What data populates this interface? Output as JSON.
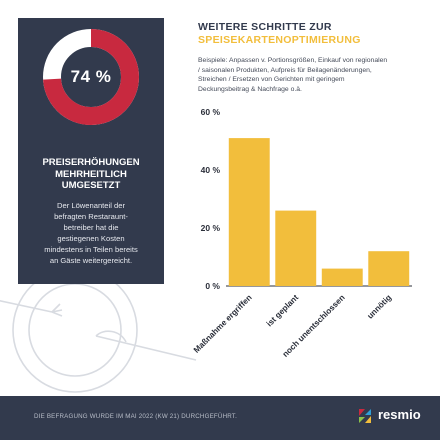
{
  "card": {
    "percent_label": "74 %",
    "percent_value": 74,
    "heading_lines": [
      "PREISERHÖHUNGEN",
      "MEHRHEITLICH",
      "UMGESETZT"
    ],
    "body_lines": [
      "Der Löwenanteil der",
      "befragten Restaraunt-",
      "betreiber hat die",
      "gestiegenen Kosten",
      "mindestens in Teilen bereits",
      "an Gäste weitergereicht."
    ],
    "colors": {
      "background": "#323a4d",
      "ring_filled": "#c8293f",
      "ring_empty": "#ffffff"
    }
  },
  "chart_data": {
    "type": "bar",
    "title_lines": [
      "WEITERE SCHRITTE ZUR",
      "SPEISEKARTENOPTIMIERUNG"
    ],
    "subtitle_lines": [
      "Beispiele: Anpassen v. Portionsgrößen, Einkauf von regionalen",
      "/ saisonalen Produkten, Aufpreis für Beilagenänderungen,",
      "Streichen / Ersetzen von Gerichten mit geringem",
      "Deckungsbeitrag & Nachfrage o.ä."
    ],
    "categories": [
      "Maßnahme ergriffen",
      "ist geplant",
      "noch unentschlossen",
      "unnötig"
    ],
    "values": [
      51,
      26,
      6,
      12
    ],
    "ylim": [
      0,
      60
    ],
    "yticks": [
      0,
      20,
      40,
      60
    ],
    "ytick_labels": [
      "0 %",
      "20 %",
      "40 %",
      "60 %"
    ],
    "grid": false,
    "legend": "none",
    "bar_color": "#f2be3c"
  },
  "footer": {
    "note": "DIE BEFRAGUNG WURDE IM MAI 2022 (KW 21) DURCHGEFÜHRT.",
    "brand": "resmio"
  }
}
